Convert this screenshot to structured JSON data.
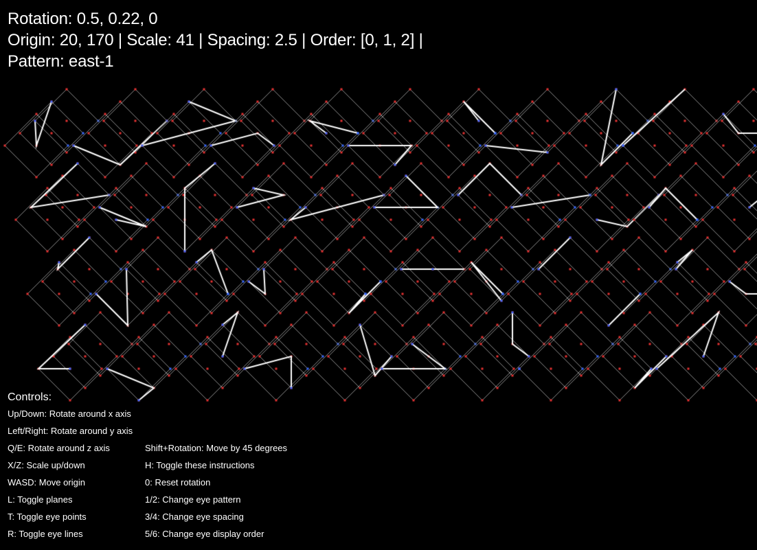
{
  "hud": {
    "rotation": "Rotation: 0.5, 0.22, 0",
    "status": "Origin: 20, 170 | Scale: 41 | Spacing: 2.5 | Order: [0, 1, 2] |",
    "pattern": "Pattern: east-1"
  },
  "colors": {
    "background": "#000000",
    "plane_lines": "#8c8c8c",
    "eye_points_red": "#e83232",
    "eye_points_blue": "#3a6bff",
    "eye_lines": "#ffffff",
    "text": "#ffffff"
  },
  "controls": {
    "title": "Controls:",
    "left": [
      "Up/Down: Rotate around x axis",
      "Left/Right: Rotate around y axis",
      "Q/E: Rotate around z axis",
      "X/Z: Scale up/down",
      "WASD: Move origin",
      "L: Toggle planes",
      "T: Toggle eye points",
      "R: Toggle eye lines"
    ],
    "right": [
      "",
      "",
      "Shift+Rotation: Move by 45 degrees",
      "H: Toggle these instructions",
      "0: Reset rotation",
      "1/2: Change eye pattern",
      "3/4: Change eye spacing",
      "5/6: Change eye display order"
    ]
  }
}
